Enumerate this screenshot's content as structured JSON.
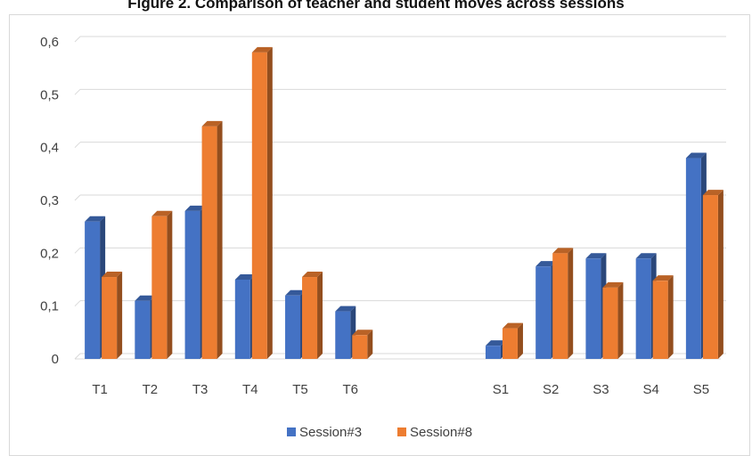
{
  "chart_data": {
    "type": "bar",
    "title": "Figure 2. Comparison of teacher and student moves across sessions",
    "categories": [
      "T1",
      "T2",
      "T3",
      "T4",
      "T5",
      "T6",
      "",
      "",
      "S1",
      "S2",
      "S3",
      "S4",
      "S5"
    ],
    "series": [
      {
        "name": "Session#3",
        "color": "#4472C4",
        "values": [
          0.26,
          0.11,
          0.28,
          0.15,
          0.12,
          0.09,
          null,
          null,
          0.025,
          0.175,
          0.19,
          0.19,
          0.38
        ]
      },
      {
        "name": "Session#8",
        "color": "#ED7D31",
        "values": [
          0.155,
          0.27,
          0.44,
          0.58,
          0.155,
          0.045,
          null,
          null,
          0.058,
          0.2,
          0.135,
          0.148,
          0.31
        ]
      }
    ],
    "ylim": [
      0,
      0.6
    ],
    "yticks": [
      "0",
      "0,1",
      "0,2",
      "0,3",
      "0,4",
      "0,5",
      "0,6"
    ],
    "xlabel": "",
    "ylabel": "",
    "grid": true,
    "legend": "bottom",
    "style": "3d-column"
  }
}
